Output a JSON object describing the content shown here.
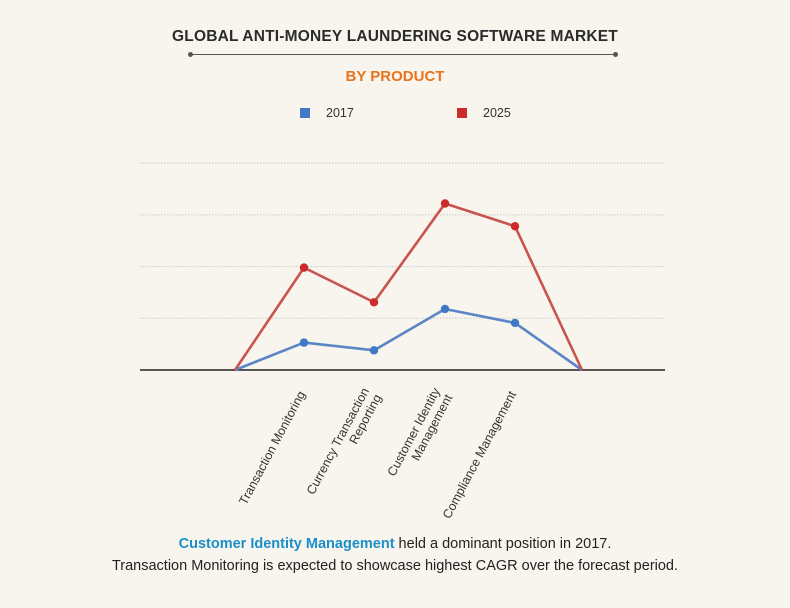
{
  "header": {
    "title": "GLOBAL ANTI-MONEY LAUNDERING SOFTWARE MARKET",
    "subtitle": "BY PRODUCT",
    "subtitle_color": "#e8731d"
  },
  "legend": {
    "items": [
      {
        "label": "2017",
        "color": "#3f78c4"
      },
      {
        "label": "2025",
        "color": "#cc2b2b"
      }
    ]
  },
  "chart_data": {
    "type": "line",
    "categories": [
      "",
      "Transaction Monitoring",
      "Currency Transaction Reporting",
      "Customer Identity Management",
      "Compliance Management",
      ""
    ],
    "category_labels": [
      [],
      [
        "Transaction Monitoring"
      ],
      [
        "Currency Transaction",
        "Reporting"
      ],
      [
        "Customer Identity",
        "Management"
      ],
      [
        "Compliance Management"
      ],
      []
    ],
    "series": [
      {
        "name": "2017",
        "color": "#3f78c4",
        "line_color": "#5b86c6",
        "values": [
          0,
          0.53,
          0.38,
          1.18,
          0.91,
          0
        ]
      },
      {
        "name": "2025",
        "color": "#cc2b2b",
        "line_color": "#c9534f",
        "values": [
          0,
          1.98,
          1.31,
          3.22,
          2.78,
          0
        ]
      }
    ],
    "ylim": [
      0,
      4.1
    ],
    "gridlines": [
      1,
      2,
      3,
      4
    ],
    "grid": true,
    "legend_position": "top-center"
  },
  "footer": {
    "line1_highlight": "Customer Identity Management",
    "line1_rest": " held a dominant position in 2017.",
    "line2": "Transaction Monitoring is expected to showcase highest CAGR over the forecast period."
  }
}
